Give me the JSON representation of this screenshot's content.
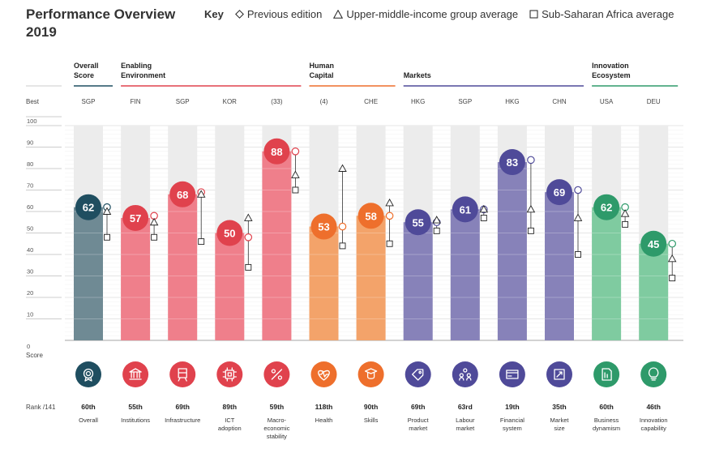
{
  "title": "Performance Overview 2019",
  "key": {
    "label": "Key",
    "items": [
      {
        "name": "Previous edition",
        "marker": "diamond"
      },
      {
        "name": "Upper-middle-income group average",
        "marker": "triangle"
      },
      {
        "name": "Sub-Saharan Africa average",
        "marker": "square"
      }
    ]
  },
  "row_labels": {
    "best": "Best",
    "score": "Score",
    "rank": "Rank /141",
    "zero": "0"
  },
  "groups": [
    {
      "label_lines": [
        "Overall",
        "Score"
      ],
      "color": "#1f4e60"
    },
    {
      "label_lines": [
        "Enabling",
        "Environment"
      ],
      "color": "#e0424d"
    },
    {
      "label_lines": [
        "Human",
        "Capital"
      ],
      "color": "#ee6f2c"
    },
    {
      "label_lines": [
        "Markets"
      ],
      "color": "#4f4a99"
    },
    {
      "label_lines": [
        "Innovation",
        "Ecosystem"
      ],
      "color": "#2e9a6a"
    }
  ],
  "chart_data": {
    "type": "bar",
    "title": "Performance Overview 2019",
    "ylabel": "Score",
    "ylim": [
      0,
      100
    ],
    "yticks": [
      10,
      20,
      30,
      40,
      50,
      60,
      70,
      80,
      90,
      100
    ],
    "categories": [
      "Overall",
      "Institutions",
      "Infrastructure",
      "ICT adoption",
      "Macro-economic stability",
      "Health",
      "Skills",
      "Product market",
      "Labour market",
      "Financial system",
      "Market size",
      "Business dynamism",
      "Innovation capability"
    ],
    "category_lines": [
      [
        "Overall"
      ],
      [
        "Institutions"
      ],
      [
        "Infrastructure"
      ],
      [
        "ICT",
        "adoption"
      ],
      [
        "Macro-",
        "economic",
        "stability"
      ],
      [
        "Health"
      ],
      [
        "Skills"
      ],
      [
        "Product",
        "market"
      ],
      [
        "Labour",
        "market"
      ],
      [
        "Financial",
        "system"
      ],
      [
        "Market",
        "size"
      ],
      [
        "Business",
        "dynamism"
      ],
      [
        "Innovation",
        "capability"
      ]
    ],
    "best_performers": [
      "SGP",
      "FIN",
      "SGP",
      "KOR",
      "(33)",
      "(4)",
      "CHE",
      "HKG",
      "SGP",
      "HKG",
      "CHN",
      "USA",
      "DEU"
    ],
    "groups_index": [
      0,
      1,
      1,
      1,
      1,
      2,
      2,
      3,
      3,
      3,
      3,
      4,
      4
    ],
    "series": [
      {
        "name": "Score",
        "values": [
          62,
          57,
          68,
          50,
          88,
          53,
          58,
          55,
          61,
          83,
          69,
          62,
          45
        ]
      },
      {
        "name": "Previous edition",
        "values": [
          62,
          58,
          69,
          48,
          88,
          53,
          58,
          55,
          61,
          84,
          70,
          62,
          45
        ]
      },
      {
        "name": "Upper-middle-income group average",
        "values": [
          60,
          55,
          68,
          57,
          77,
          80,
          64,
          56,
          61,
          61,
          57,
          59,
          38
        ]
      },
      {
        "name": "Sub-Saharan Africa average",
        "values": [
          48,
          48,
          46,
          34,
          70,
          44,
          45,
          51,
          57,
          51,
          40,
          54,
          29
        ]
      }
    ],
    "ranks": [
      "60th",
      "55th",
      "69th",
      "89th",
      "59th",
      "118th",
      "90th",
      "69th",
      "63rd",
      "19th",
      "35th",
      "60th",
      "46th"
    ],
    "colors": {
      "bar": [
        "#6f8a94",
        "#ef7f8b",
        "#ef7f8b",
        "#ef7f8b",
        "#ef7f8b",
        "#f3a36a",
        "#f3a36a",
        "#8782b9",
        "#8782b9",
        "#8782b9",
        "#8782b9",
        "#7fcba0",
        "#7fcba0"
      ],
      "circle": [
        "#1f4e60",
        "#e0424d",
        "#e0424d",
        "#e0424d",
        "#e0424d",
        "#ee6f2c",
        "#ee6f2c",
        "#4f4a99",
        "#4f4a99",
        "#4f4a99",
        "#4f4a99",
        "#2e9a6a",
        "#2e9a6a"
      ]
    },
    "icons": [
      "medal-icon",
      "institution-icon",
      "train-icon",
      "chip-icon",
      "percent-icon",
      "heart-pulse-icon",
      "graduation-icon",
      "tag-icon",
      "people-icon",
      "card-icon",
      "expand-icon",
      "document-icon",
      "lightbulb-icon"
    ]
  }
}
